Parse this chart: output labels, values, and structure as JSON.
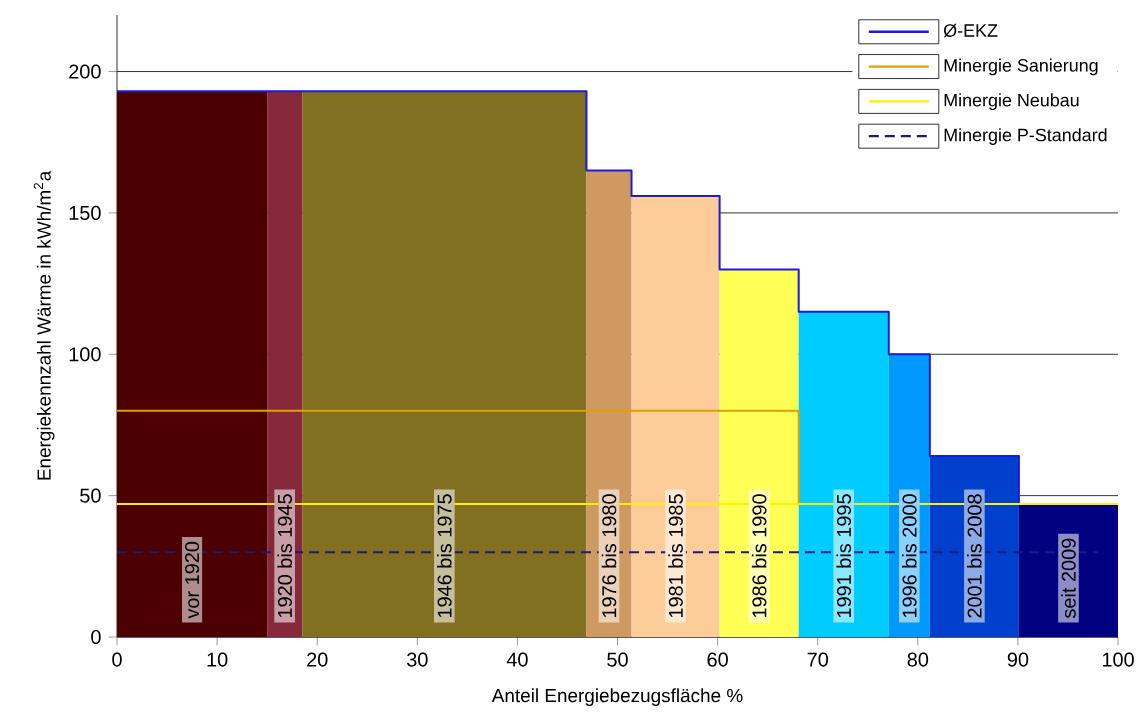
{
  "chart_data": {
    "type": "histogram",
    "xlabel": "Anteil Energiebezugsfläche %",
    "ylabel": "Energiekennzahl Wärme in kWh/m$^{2}$a",
    "bins": [
      0,
      15,
      18.5,
      46.9,
      51.4,
      60.2,
      68.1,
      77.1,
      81.2,
      90.1,
      100
    ],
    "values": [
      193,
      193,
      193,
      165,
      156,
      130,
      115,
      100,
      64,
      47
    ],
    "colors": [
      "#4d0000",
      "#86293b",
      "#807020",
      "#cf9a62",
      "#fccc99",
      "#ffff55",
      "#00ccff",
      "#0099ff",
      "#0040cc",
      "#000080"
    ],
    "series": [
      {
        "name": "Ø-EKZ",
        "type": "step",
        "color": "#1a1ae0",
        "x": [
          0,
          15,
          18.5,
          46.9,
          51.4,
          60.2,
          68.1,
          77.1,
          81.2,
          90.1,
          100
        ],
        "values": [
          193,
          193,
          193,
          165,
          156,
          130,
          115,
          100,
          64,
          47,
          47
        ]
      },
      {
        "name": "Minergie Sanierung",
        "type": "step",
        "color": "#e0a000",
        "x": [
          0,
          68.1,
          100
        ],
        "values": [
          80,
          47,
          47
        ]
      },
      {
        "name": "Minergie Neubau",
        "type": "line",
        "color": "#ffee00",
        "x": [
          0,
          100
        ],
        "values": [
          47,
          47
        ]
      },
      {
        "name": "Minergie P-Standard",
        "type": "line",
        "color": "#1a1a80",
        "line_style": "dashed",
        "x": [
          0,
          98
        ],
        "values": [
          30,
          30
        ]
      }
    ],
    "annotations": [
      "vor 1920",
      "1920 bis 1945",
      "1946 bis 1975",
      "1976 bis 1980",
      "1981 bis 1985",
      "1986 bis 1990",
      "1991 bis 1995",
      "1996 bis 2000",
      "2001 bis 2008",
      "seit 2009"
    ],
    "xlim": [
      0,
      100
    ],
    "ylim": [
      0,
      220
    ],
    "xticks": [
      0,
      10,
      20,
      30,
      40,
      50,
      60,
      70,
      80,
      90,
      100
    ],
    "yticks": [
      0,
      50,
      100,
      150,
      200
    ],
    "grid": "y",
    "legend": "top right"
  }
}
